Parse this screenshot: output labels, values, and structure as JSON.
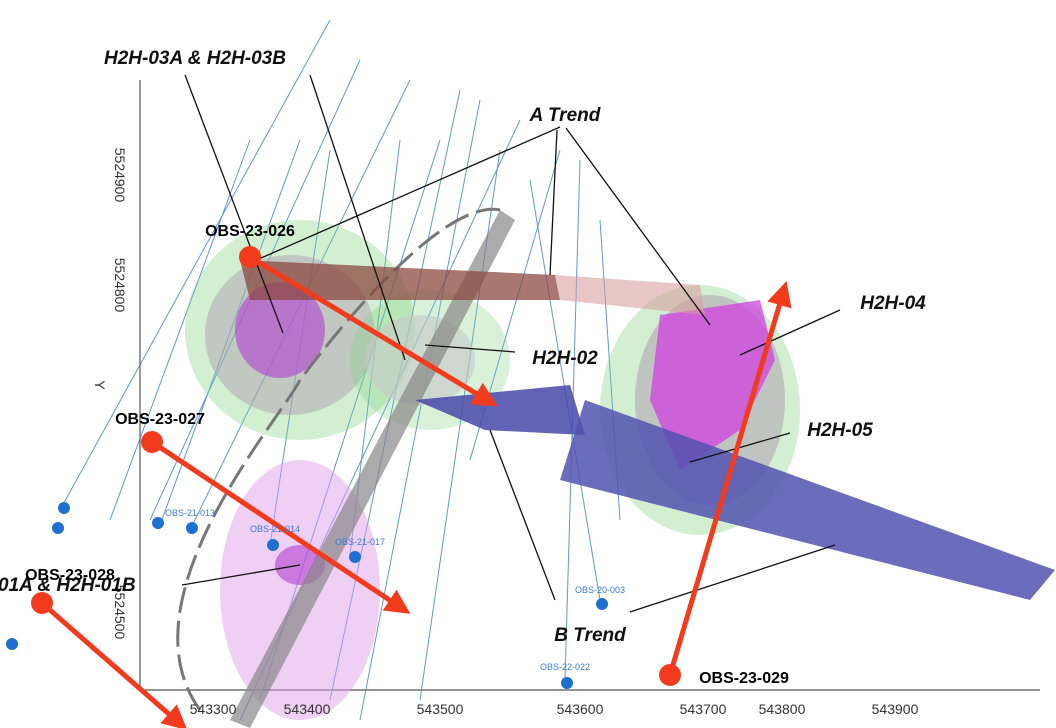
{
  "labels": {
    "h2h03": "H2H-03A & H2H-03B",
    "a_trend": "A Trend",
    "h2h04": "H2H-04",
    "h2h02": "H2H-02",
    "h2h05": "H2H-05",
    "b_trend": "B Trend",
    "h2h01": "01A & H2H-01B"
  },
  "holes": [
    "OBS-23-026",
    "OBS-23-027",
    "OBS-23-028",
    "OBS-23-029"
  ],
  "x_axis": [
    "543300",
    "543400",
    "543500",
    "543600",
    "543700",
    "543800",
    "543900"
  ],
  "y_axis": {
    "name": "Y",
    "ticks": [
      "5524900",
      "5524800",
      "5524500"
    ]
  },
  "small_labels": [
    "OBS-21-013",
    "OBS-21-014",
    "OBS-21-017",
    "OBS-20-003",
    "OBS-22-022"
  ]
}
